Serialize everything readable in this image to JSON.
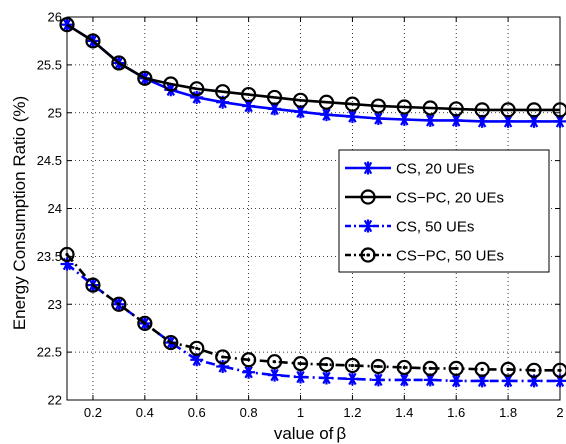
{
  "chart_data": {
    "type": "line",
    "xlabel": "value of",
    "xlabel_symbol": "β",
    "ylabel": "Energy Consumption Ratio (%)",
    "xlim": [
      0.1,
      2.0
    ],
    "ylim": [
      22,
      26
    ],
    "grid": "dotted",
    "legend_position": "center-right",
    "x_ticks": [
      0.2,
      0.4,
      0.6,
      0.8,
      1,
      1.2,
      1.4,
      1.6,
      1.8,
      2
    ],
    "x_tick_labels": [
      "0.2",
      "0.4",
      "0.6",
      "0.8",
      "1",
      "1.2",
      "1.4",
      "1.6",
      "1.8",
      "2"
    ],
    "y_ticks": [
      22,
      22.5,
      23,
      23.5,
      24,
      24.5,
      25,
      25.5,
      26
    ],
    "y_tick_labels": [
      "22",
      "22.5",
      "23",
      "23.5",
      "24",
      "24.5",
      "25",
      "25.5",
      "26"
    ],
    "x": [
      0.1,
      0.2,
      0.3,
      0.4,
      0.5,
      0.6,
      0.7,
      0.8,
      0.9,
      1.0,
      1.1,
      1.2,
      1.3,
      1.4,
      1.5,
      1.6,
      1.7,
      1.8,
      1.9,
      2.0
    ],
    "series": [
      {
        "name": "CS, 20 UEs",
        "color": "#0000ff",
        "line": "solid",
        "marker": "star",
        "values": [
          25.92,
          25.75,
          25.52,
          25.36,
          25.24,
          25.16,
          25.11,
          25.07,
          25.04,
          25.01,
          24.98,
          24.96,
          24.94,
          24.93,
          24.92,
          24.92,
          24.91,
          24.91,
          24.91,
          24.91
        ]
      },
      {
        "name": "CS−PC, 20 UEs",
        "color": "#000000",
        "line": "solid",
        "marker": "circle",
        "values": [
          25.92,
          25.75,
          25.52,
          25.36,
          25.3,
          25.25,
          25.22,
          25.19,
          25.16,
          25.13,
          25.11,
          25.09,
          25.07,
          25.06,
          25.05,
          25.04,
          25.03,
          25.03,
          25.03,
          25.03
        ]
      },
      {
        "name": "CS, 50 UEs",
        "color": "#0000ff",
        "line": "dashdot",
        "marker": "star",
        "values": [
          23.42,
          23.2,
          23.0,
          22.8,
          22.6,
          22.42,
          22.35,
          22.29,
          22.26,
          22.24,
          22.23,
          22.22,
          22.21,
          22.21,
          22.21,
          22.2,
          22.2,
          22.2,
          22.2,
          22.2
        ]
      },
      {
        "name": "CS−PC, 50 UEs",
        "color": "#000000",
        "line": "dashdot",
        "marker": "circle-dot",
        "values": [
          23.52,
          23.2,
          23.0,
          22.8,
          22.6,
          22.54,
          22.45,
          22.42,
          22.4,
          22.38,
          22.37,
          22.36,
          22.35,
          22.34,
          22.33,
          22.33,
          22.32,
          22.32,
          22.31,
          22.31
        ]
      }
    ]
  }
}
